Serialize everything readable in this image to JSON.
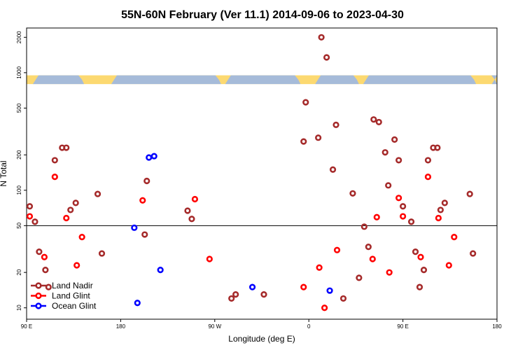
{
  "chart_data": {
    "type": "scatter",
    "title": "55N-60N February (Ver 11.1)   2014-09-06 to 2023-04-30",
    "xlabel": "Longitude (deg E)",
    "ylabel": "N Total",
    "xlim": [
      90,
      540
    ],
    "ylim": [
      8,
      2400
    ],
    "y_scale": "log",
    "x_ticks": [
      {
        "value": 90,
        "label": "90 E"
      },
      {
        "value": 180,
        "label": "180"
      },
      {
        "value": 270,
        "label": "90 W"
      },
      {
        "value": 360,
        "label": "0"
      },
      {
        "value": 450,
        "label": "90 E"
      },
      {
        "value": 540,
        "label": "180"
      }
    ],
    "y_ticks": [
      10,
      20,
      50,
      100,
      200,
      500,
      1000,
      2000
    ],
    "reference_line": 50,
    "map_strip": {
      "y_range": [
        800,
        950
      ],
      "land_color": "#FCD971",
      "ocean_color": "#A6BBD9"
    },
    "legend": {
      "position": "bottom-left"
    },
    "series": [
      {
        "name": "Land Nadir",
        "color": "#A52A2A",
        "points": [
          [
            93,
            73
          ],
          [
            98,
            54
          ],
          [
            102,
            30
          ],
          [
            108,
            21
          ],
          [
            111,
            15
          ],
          [
            117,
            180
          ],
          [
            124,
            230
          ],
          [
            128,
            230
          ],
          [
            132,
            68
          ],
          [
            137,
            78
          ],
          [
            158,
            93
          ],
          [
            162,
            29
          ],
          [
            203,
            42
          ],
          [
            205,
            120
          ],
          [
            244,
            67
          ],
          [
            248,
            57
          ],
          [
            286,
            12
          ],
          [
            290,
            13
          ],
          [
            317,
            13
          ],
          [
            355,
            260
          ],
          [
            357,
            560
          ],
          [
            369,
            280
          ],
          [
            372,
            2000
          ],
          [
            377,
            1350
          ],
          [
            383,
            150
          ],
          [
            386,
            360
          ],
          [
            393,
            12
          ],
          [
            402,
            94
          ],
          [
            408,
            18
          ],
          [
            413,
            49
          ],
          [
            417,
            33
          ],
          [
            422,
            400
          ],
          [
            427,
            380
          ],
          [
            433,
            210
          ],
          [
            436,
            110
          ],
          [
            442,
            270
          ],
          [
            446,
            180
          ],
          [
            450,
            73
          ],
          [
            458,
            54
          ],
          [
            462,
            30
          ],
          [
            470,
            21
          ],
          [
            466,
            15
          ],
          [
            474,
            180
          ],
          [
            479,
            230
          ],
          [
            483,
            230
          ],
          [
            486,
            68
          ],
          [
            490,
            78
          ],
          [
            514,
            93
          ],
          [
            517,
            29
          ]
        ]
      },
      {
        "name": "Land Glint",
        "color": "#FF0000",
        "points": [
          [
            93,
            60
          ],
          [
            107,
            27
          ],
          [
            117,
            130
          ],
          [
            128,
            58
          ],
          [
            138,
            23
          ],
          [
            143,
            40
          ],
          [
            201,
            82
          ],
          [
            251,
            84
          ],
          [
            265,
            26
          ],
          [
            355,
            15
          ],
          [
            370,
            22
          ],
          [
            375,
            10
          ],
          [
            387,
            31
          ],
          [
            421,
            26
          ],
          [
            425,
            59
          ],
          [
            437,
            20
          ],
          [
            446,
            86
          ],
          [
            450,
            60
          ],
          [
            467,
            27
          ],
          [
            474,
            130
          ],
          [
            484,
            58
          ],
          [
            494,
            23
          ],
          [
            499,
            40
          ]
        ]
      },
      {
        "name": "Ocean Glint",
        "color": "#0000FF",
        "points": [
          [
            193,
            48
          ],
          [
            196,
            11
          ],
          [
            207,
            190
          ],
          [
            212,
            195
          ],
          [
            218,
            21
          ],
          [
            306,
            15
          ],
          [
            380,
            14
          ]
        ]
      }
    ]
  }
}
